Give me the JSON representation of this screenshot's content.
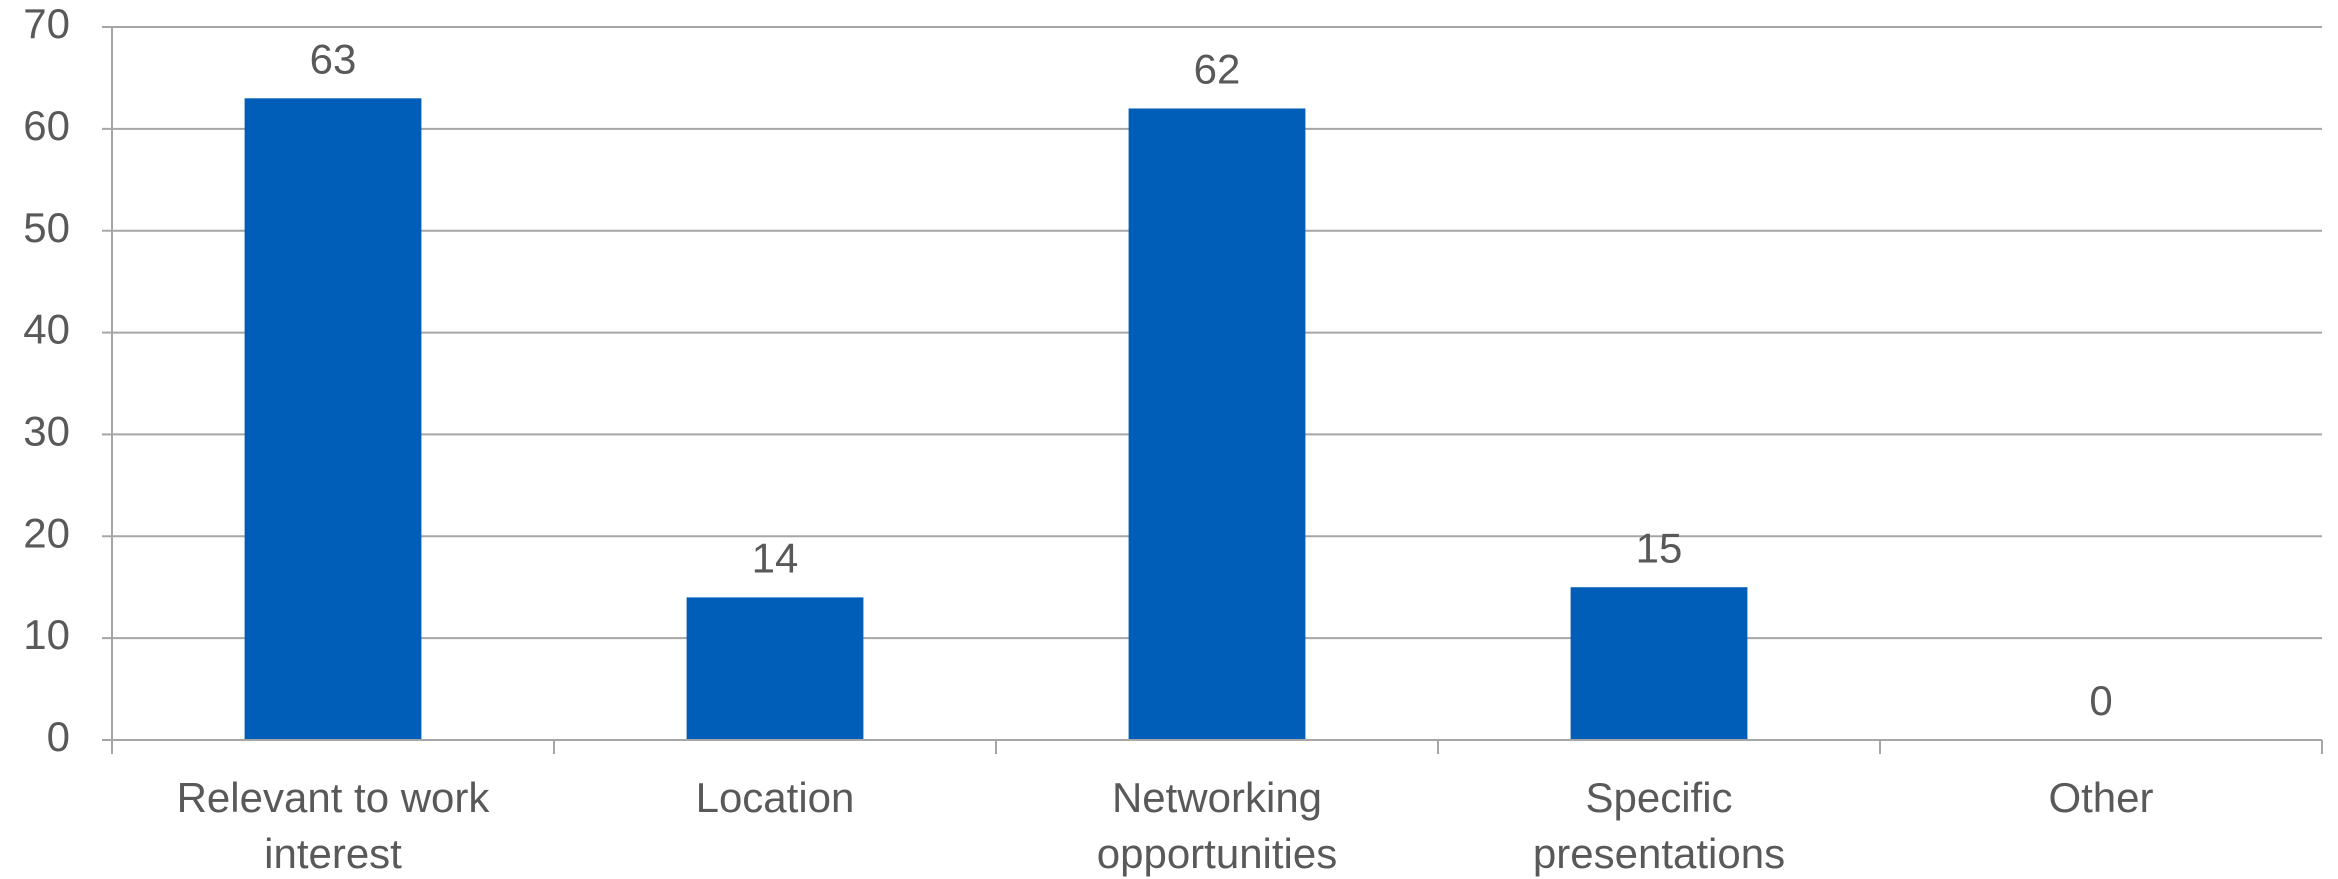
{
  "chart_data": {
    "type": "bar",
    "categories": [
      "Relevant to work interest",
      "Location",
      "Networking opportunities",
      "Specific presentations",
      "Other"
    ],
    "values": [
      63,
      14,
      62,
      15,
      0
    ],
    "color": "#005eb8",
    "ylim": [
      0,
      70
    ],
    "yticks": [
      0,
      10,
      20,
      30,
      40,
      50,
      60,
      70
    ],
    "grid": true
  }
}
